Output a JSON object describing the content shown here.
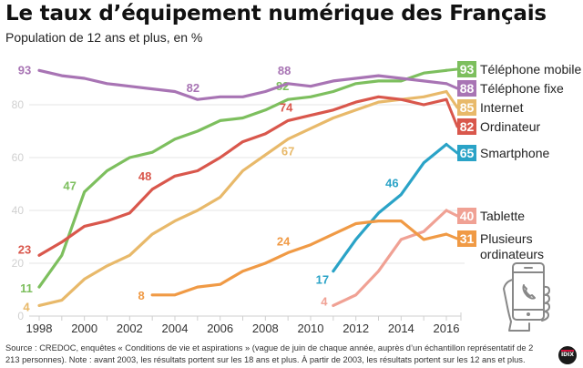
{
  "header": {
    "title": "Le taux d’équipement numérique des Français",
    "subtitle": "Population de 12 ans et plus, en %"
  },
  "footer": {
    "source": "Source : CREDOC, enquêtes « Conditions de vie et aspirations » (vague de juin de chaque année, auprès d’un échantillon représentatif de 2 213 personnes). Note : avant 2003, les résultats portent sur les 18 ans et plus. À partir de 2003, les résultats portent sur les 12 ans et plus.",
    "logo_text": "IDIX"
  },
  "illustration": {
    "icon": "hand-holding-smartphone-icon"
  },
  "chart_data": {
    "type": "line",
    "title": "Le taux d’équipement numérique des Français",
    "subtitle": "Population de 12 ans et plus, en %",
    "xlabel": "",
    "ylabel": "%",
    "x": [
      1998,
      1999,
      2000,
      2001,
      2002,
      2003,
      2004,
      2005,
      2006,
      2007,
      2008,
      2009,
      2010,
      2011,
      2012,
      2013,
      2014,
      2015,
      2016
    ],
    "xticks": [
      "1998",
      "2000",
      "2002",
      "2004",
      "2006",
      "2008",
      "2010",
      "2012",
      "2014",
      "2016"
    ],
    "xlim": [
      1998,
      2016
    ],
    "yticks": [
      "0",
      "20",
      "40",
      "60",
      "80"
    ],
    "ylim": [
      0,
      95
    ],
    "grid": true,
    "legend_position": "right",
    "series": [
      {
        "name": "Téléphone mobile",
        "color": "#7dbf5e",
        "end_label": "93",
        "start_year": 1998,
        "values": [
          11,
          23,
          47,
          55,
          60,
          62,
          67,
          70,
          74,
          75,
          78,
          82,
          83,
          85,
          88,
          89,
          89,
          92,
          93
        ],
        "annotations": [
          {
            "year": 1998,
            "text": "11"
          },
          {
            "year": 2000,
            "text": "47"
          },
          {
            "year": 2009,
            "text": "82"
          }
        ]
      },
      {
        "name": "Téléphone fixe",
        "color": "#a874b4",
        "end_label": "88",
        "start_year": 1998,
        "values": [
          93,
          91,
          90,
          88,
          87,
          86,
          85,
          82,
          83,
          83,
          85,
          88,
          87,
          89,
          90,
          91,
          90,
          89,
          88
        ],
        "annotations": [
          {
            "year": 1998,
            "text": "93"
          },
          {
            "year": 2005,
            "text": "82"
          },
          {
            "year": 2009,
            "text": "88"
          }
        ]
      },
      {
        "name": "Internet",
        "color": "#e8b96a",
        "end_label": "85",
        "start_year": 1998,
        "values": [
          4,
          6,
          14,
          19,
          23,
          31,
          36,
          40,
          45,
          55,
          61,
          67,
          71,
          75,
          78,
          81,
          82,
          83,
          85
        ],
        "annotations": [
          {
            "year": 1998,
            "text": "4"
          },
          {
            "year": 2009,
            "text": "67"
          }
        ]
      },
      {
        "name": "Ordinateur",
        "color": "#d9574c",
        "end_label": "82",
        "start_year": 1998,
        "values": [
          23,
          28,
          34,
          36,
          39,
          48,
          53,
          55,
          60,
          66,
          69,
          74,
          76,
          78,
          81,
          83,
          82,
          80,
          82
        ],
        "annotations": [
          {
            "year": 1998,
            "text": "23"
          },
          {
            "year": 2003,
            "text": "48"
          },
          {
            "year": 2009,
            "text": "74"
          }
        ]
      },
      {
        "name": "Smartphone",
        "color": "#2aa3c7",
        "end_label": "65",
        "start_year": 2011,
        "values": [
          17,
          29,
          39,
          46,
          58,
          65
        ],
        "annotations": [
          {
            "year": 2011,
            "text": "17"
          },
          {
            "year": 2014,
            "text": "46"
          }
        ]
      },
      {
        "name": "Tablette",
        "color": "#f0a194",
        "end_label": "40",
        "start_year": 2011,
        "values": [
          4,
          8,
          17,
          29,
          32,
          40
        ],
        "annotations": [
          {
            "year": 2011,
            "text": "4"
          }
        ]
      },
      {
        "name": "Plusieurs ordinateurs",
        "name_lines": [
          "Plusieurs",
          "ordinateurs"
        ],
        "color": "#f09a45",
        "end_label": "31",
        "start_year": 2003,
        "values": [
          8,
          8,
          11,
          12,
          17,
          20,
          24,
          27,
          31,
          35,
          36,
          36,
          29,
          31
        ],
        "annotations": [
          {
            "year": 2003,
            "text": "8"
          },
          {
            "year": 2009,
            "text": "24"
          }
        ]
      }
    ]
  }
}
